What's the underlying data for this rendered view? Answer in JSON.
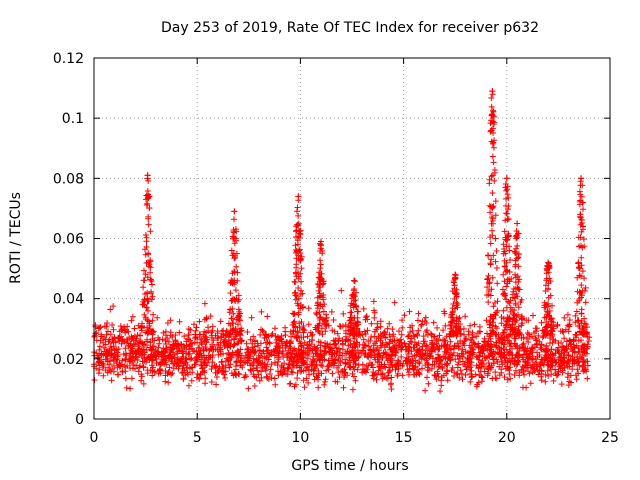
{
  "chart_data": {
    "type": "scatter",
    "title": "Day 253 of 2019, Rate Of TEC Index for receiver p632",
    "xlabel": "GPS time / hours",
    "ylabel": "ROTI / TECUs",
    "xlim": [
      0,
      25
    ],
    "ylim": [
      0,
      0.12
    ],
    "x_ticks": [
      "0",
      "5",
      "10",
      "15",
      "20",
      "25"
    ],
    "y_ticks": [
      "0",
      "0.02",
      "0.04",
      "0.06",
      "0.08",
      "0.1",
      "0.12"
    ],
    "grid": true,
    "marker": "+",
    "color": "#ff0000",
    "time_span_hours": [
      0,
      24
    ],
    "baseline_range": [
      0.008,
      0.028
    ],
    "peaks": [
      {
        "x": 2.6,
        "y": 0.081
      },
      {
        "x": 6.8,
        "y": 0.069
      },
      {
        "x": 9.9,
        "y": 0.074
      },
      {
        "x": 11.0,
        "y": 0.059
      },
      {
        "x": 12.6,
        "y": 0.046
      },
      {
        "x": 17.5,
        "y": 0.048
      },
      {
        "x": 19.3,
        "y": 0.109
      },
      {
        "x": 20.0,
        "y": 0.08
      },
      {
        "x": 20.5,
        "y": 0.065
      },
      {
        "x": 22.0,
        "y": 0.052
      },
      {
        "x": 23.6,
        "y": 0.08
      }
    ]
  }
}
